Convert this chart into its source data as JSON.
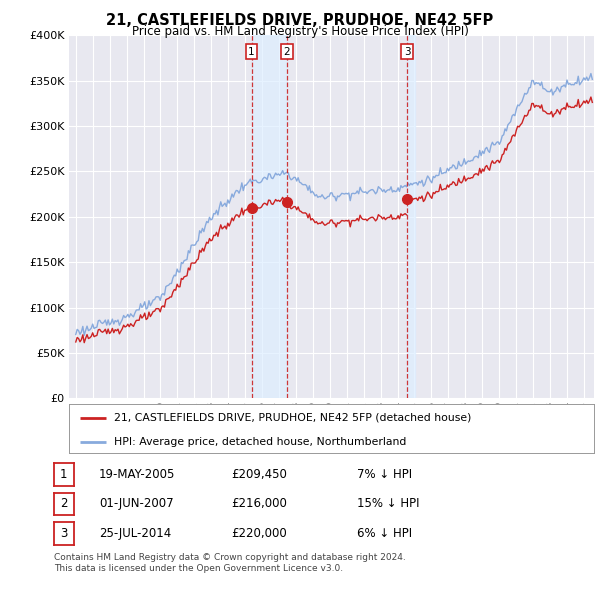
{
  "title": "21, CASTLEFIELDS DRIVE, PRUDHOE, NE42 5FP",
  "subtitle": "Price paid vs. HM Land Registry's House Price Index (HPI)",
  "purchases": [
    {
      "date_str": "19-MAY-2005",
      "date_num": 2005.38,
      "price": 209450,
      "label": "1"
    },
    {
      "date_str": "01-JUN-2007",
      "date_num": 2007.46,
      "price": 216000,
      "label": "2"
    },
    {
      "date_str": "25-JUL-2014",
      "date_num": 2014.56,
      "price": 220000,
      "label": "3"
    }
  ],
  "table_rows": [
    {
      "num": "1",
      "date": "19-MAY-2005",
      "price": "£209,450",
      "note": "7% ↓ HPI"
    },
    {
      "num": "2",
      "date": "01-JUN-2007",
      "price": "£216,000",
      "note": "15% ↓ HPI"
    },
    {
      "num": "3",
      "date": "25-JUL-2014",
      "price": "£220,000",
      "note": "6% ↓ HPI"
    }
  ],
  "legend_line1": "21, CASTLEFIELDS DRIVE, PRUDHOE, NE42 5FP (detached house)",
  "legend_line2": "HPI: Average price, detached house, Northumberland",
  "footnote1": "Contains HM Land Registry data © Crown copyright and database right 2024.",
  "footnote2": "This data is licensed under the Open Government Licence v3.0.",
  "ylim": [
    0,
    400000
  ],
  "yticks": [
    0,
    50000,
    100000,
    150000,
    200000,
    250000,
    300000,
    350000,
    400000
  ],
  "plot_color_red": "#cc2222",
  "plot_color_blue": "#88aadd",
  "bg_color": "#e8e8f0",
  "grid_color": "#ffffff",
  "vline_color": "#cc2222",
  "shade_color": "#ddeeff"
}
